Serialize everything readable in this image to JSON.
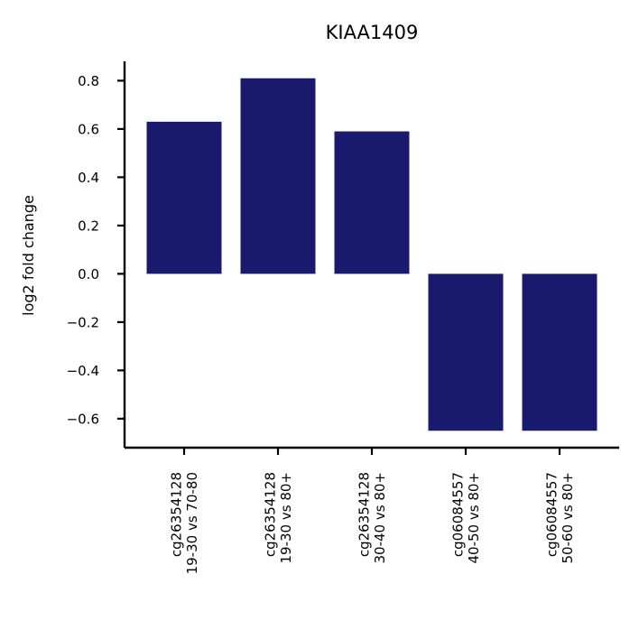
{
  "chart_data": {
    "type": "bar",
    "title": "KIAA1409",
    "xlabel": "",
    "ylabel": "log2 fold change",
    "categories": [
      [
        "cg26354128",
        "19-30 vs 70-80"
      ],
      [
        "cg26354128",
        "19-30 vs 80+"
      ],
      [
        "cg26354128",
        "30-40 vs 80+"
      ],
      [
        "cg06084557",
        "40-50 vs 80+"
      ],
      [
        "cg06084557",
        "50-60 vs 80+"
      ]
    ],
    "values": [
      0.63,
      0.81,
      0.59,
      -0.65,
      -0.65
    ],
    "ylim": [
      -0.72,
      0.88
    ],
    "yticks": [
      0.8,
      0.6,
      0.4,
      0.2,
      0.0,
      -0.2,
      -0.4,
      -0.6
    ],
    "ytick_labels": [
      "0.8",
      "0.6",
      "0.4",
      "0.2",
      "0.0",
      "−0.2",
      "−0.4",
      "−0.6"
    ],
    "bar_color": "#1a1a6e",
    "grid": false,
    "legend": "none"
  }
}
